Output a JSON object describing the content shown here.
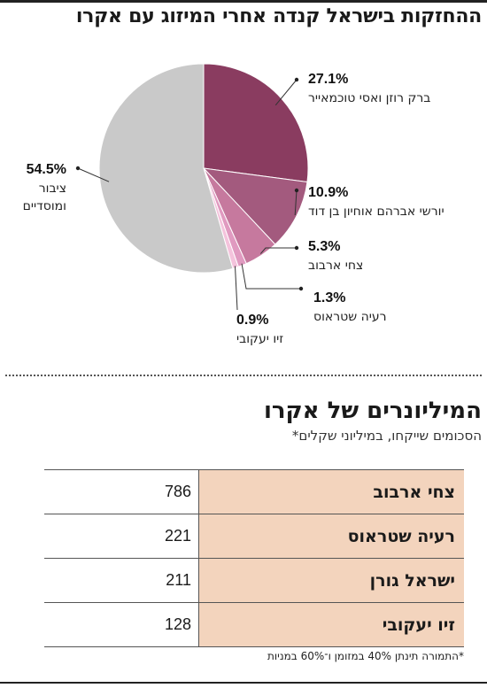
{
  "pie_title": "ההחזקות בישראל קנדה אחרי המיזוג עם אקרו",
  "chart_data": {
    "type": "pie",
    "title": "ההחזקות בישראל קנדה אחרי המיזוג עם אקרו",
    "slices": [
      {
        "label_lines": [
          "ברק רוזן ואסי טוכמאייר"
        ],
        "value": 27.1,
        "value_label": "27.1%",
        "color": "#8a3c60"
      },
      {
        "label_lines": [
          "יורשי אברהם אוחיון בן דוד"
        ],
        "value": 10.9,
        "value_label": "10.9%",
        "color": "#a35a7e"
      },
      {
        "label_lines": [
          "צחי ארבוב"
        ],
        "value": 5.3,
        "value_label": "5.3%",
        "color": "#c6799e"
      },
      {
        "label_lines": [
          "רעיה שטראוס"
        ],
        "value": 1.3,
        "value_label": "1.3%",
        "color": "#e09ac0"
      },
      {
        "label_lines": [
          "זיו יעקובי"
        ],
        "value": 0.9,
        "value_label": "0.9%",
        "color": "#f4c3dc"
      },
      {
        "label_lines": [
          "ציבור",
          "ומוסדיים"
        ],
        "value": 54.5,
        "value_label": "54.5%",
        "color": "#c9c9c9"
      }
    ]
  },
  "table_section": {
    "title": "המיליונרים של אקרו",
    "subtitle": "הסכומים שייקחו, במיליוני שקלים*",
    "rows": [
      {
        "name": "צחי ארבוב",
        "value": "786"
      },
      {
        "name": "רעיה שטראוס",
        "value": "221"
      },
      {
        "name": "ישראל גורן",
        "value": "211"
      },
      {
        "name": "זיו יעקובי",
        "value": "128"
      }
    ],
    "footnote": "*התמורה תינתן 40% במזומן ו־60% במניות"
  }
}
